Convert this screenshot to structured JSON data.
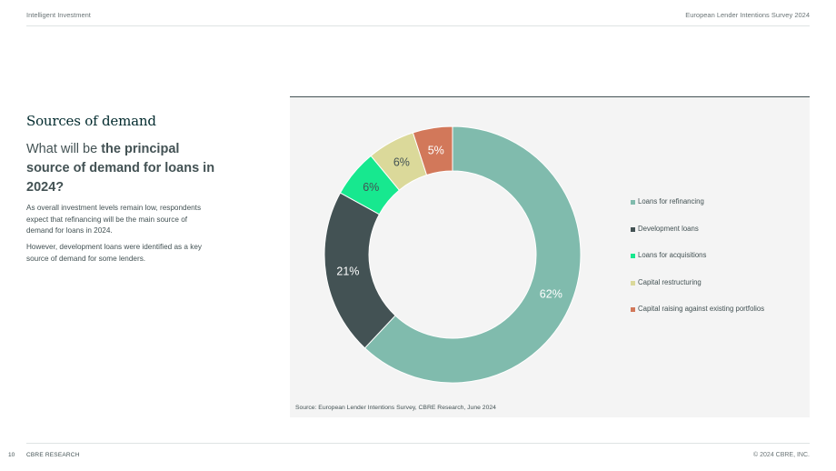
{
  "header": {
    "left": "Intelligent Investment",
    "right": "European Lender Intentions Survey 2024"
  },
  "footer": {
    "page_number": "10",
    "left": "CBRE RESEARCH",
    "right": "© 2024 CBRE, INC."
  },
  "content": {
    "section_title": "Sources of demand",
    "question_prefix": "What will be ",
    "question_bold": "the principal source of demand for loans in 2024?",
    "paragraph_1": "As overall investment levels remain low, respondents expect that refinancing will be the main source of demand for loans in 2024.",
    "paragraph_2": "However, development loans were identified as a key source of demand for some lenders."
  },
  "source_note": "Source: European Lender Intentions Survey, CBRE Research, June 2024",
  "chart_data": {
    "type": "pie",
    "donut": true,
    "title": "",
    "categories": [
      "Loans for refinancing",
      "Development loans",
      "Loans for acquisitions",
      "Capital restructuring",
      "Capital raising against existing portfolios"
    ],
    "values": [
      62,
      21,
      6,
      6,
      5
    ],
    "value_labels": [
      "62%",
      "21%",
      "6%",
      "6%",
      "5%"
    ],
    "colors": [
      "#80bbad",
      "#435254",
      "#17e88f",
      "#dbd99a",
      "#d2785a"
    ],
    "label_colors": [
      "#ffffff",
      "#ffffff",
      "#435254",
      "#435254",
      "#ffffff"
    ],
    "legend_position": "right"
  }
}
